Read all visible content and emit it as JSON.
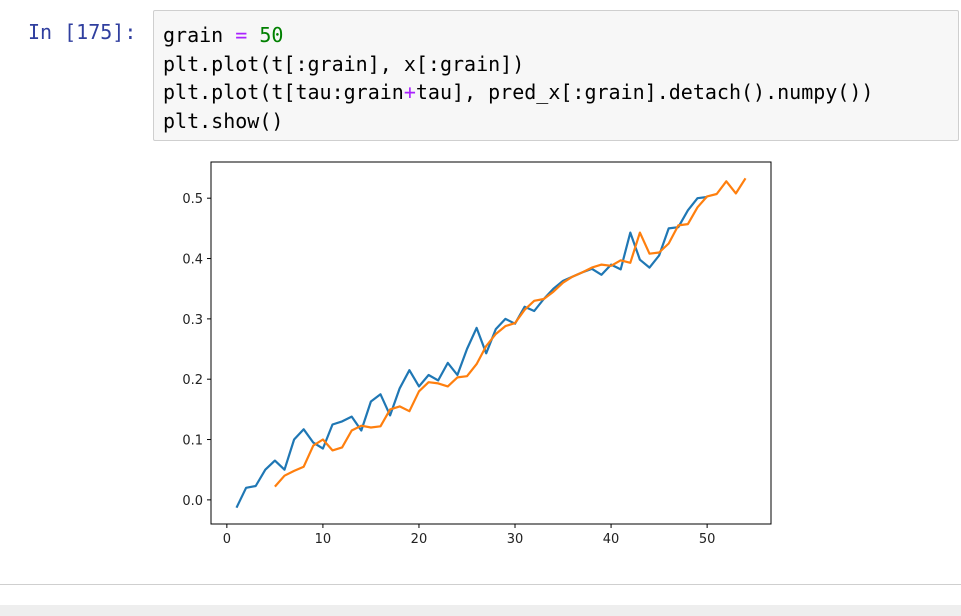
{
  "cell": {
    "prompt": "In [175]:",
    "code": [
      [
        {
          "text": "grain "
        },
        {
          "text": "=",
          "color": "#aa22ff"
        },
        {
          "text": " "
        },
        {
          "text": "50",
          "color": "#008000"
        }
      ],
      [
        {
          "text": "plt.plot(t[:grain], x[:grain])"
        }
      ],
      [
        {
          "text": "plt.plot(t[tau:grain"
        },
        {
          "text": "+",
          "color": "#aa22ff"
        },
        {
          "text": "tau], pred_x[:grain].detach().numpy())"
        }
      ],
      [
        {
          "text": "plt.show()"
        }
      ]
    ]
  },
  "chart_data": {
    "type": "line",
    "xlim": [
      -1.65,
      56.65
    ],
    "ylim": [
      -0.04,
      0.56
    ],
    "xticks": [
      0,
      10,
      20,
      30,
      40,
      50
    ],
    "yticks": [
      {
        "value": 0,
        "label": "0.0"
      },
      0.1,
      0.2,
      0.3,
      0.4,
      0.5
    ],
    "series": [
      {
        "color": "#1f77b4",
        "x": [
          1,
          2,
          3,
          4,
          5,
          6,
          7,
          8,
          9,
          10,
          11,
          12,
          13,
          14,
          15,
          16,
          17,
          18,
          19,
          20,
          21,
          22,
          23,
          24,
          25,
          26,
          27,
          28,
          29,
          30,
          31,
          32,
          33,
          34,
          35,
          36,
          37,
          38,
          39,
          40,
          41,
          42,
          43,
          44,
          45,
          46,
          47,
          48,
          49,
          50
        ],
        "values": [
          -0.013,
          0.02,
          0.023,
          0.05,
          0.065,
          0.05,
          0.1,
          0.117,
          0.095,
          0.085,
          0.125,
          0.13,
          0.138,
          0.115,
          0.163,
          0.175,
          0.14,
          0.185,
          0.215,
          0.188,
          0.207,
          0.198,
          0.227,
          0.207,
          0.25,
          0.285,
          0.243,
          0.283,
          0.3,
          0.292,
          0.32,
          0.313,
          0.333,
          0.35,
          0.363,
          0.37,
          0.377,
          0.383,
          0.373,
          0.39,
          0.382,
          0.443,
          0.398,
          0.385,
          0.405,
          0.45,
          0.452,
          0.48,
          0.5,
          0.502
        ]
      },
      {
        "color": "#ff7f0e",
        "x": [
          5,
          6,
          7,
          8,
          9,
          10,
          11,
          12,
          13,
          14,
          15,
          16,
          17,
          18,
          19,
          20,
          21,
          22,
          23,
          24,
          25,
          26,
          27,
          28,
          29,
          30,
          31,
          32,
          33,
          34,
          35,
          36,
          37,
          38,
          39,
          40,
          41,
          42,
          43,
          44,
          45,
          46,
          47,
          48,
          49,
          50,
          51,
          52,
          53,
          54
        ],
        "values": [
          0.022,
          0.04,
          0.048,
          0.055,
          0.09,
          0.1,
          0.082,
          0.087,
          0.115,
          0.123,
          0.12,
          0.122,
          0.15,
          0.155,
          0.147,
          0.18,
          0.195,
          0.193,
          0.188,
          0.203,
          0.205,
          0.225,
          0.255,
          0.275,
          0.288,
          0.293,
          0.315,
          0.33,
          0.333,
          0.345,
          0.36,
          0.37,
          0.377,
          0.385,
          0.39,
          0.388,
          0.397,
          0.393,
          0.443,
          0.408,
          0.41,
          0.425,
          0.455,
          0.457,
          0.485,
          0.503,
          0.507,
          0.528,
          0.508,
          0.533
        ]
      }
    ]
  }
}
